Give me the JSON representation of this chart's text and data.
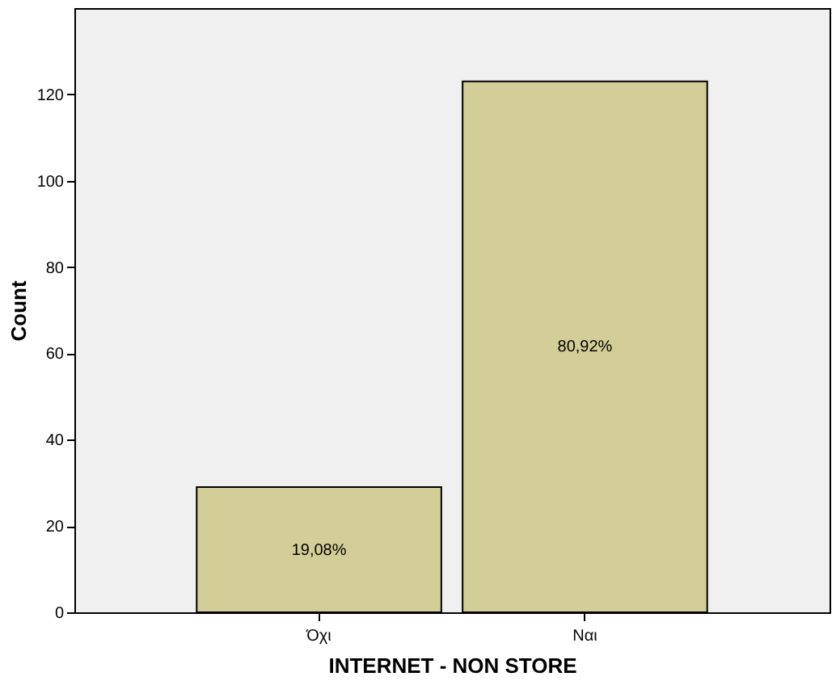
{
  "chart_data": {
    "type": "bar",
    "xlabel": "INTERNET - NON STORE",
    "ylabel": "Count",
    "categories": [
      "Όχι",
      "Ναι"
    ],
    "values": [
      29,
      123
    ],
    "annotations": [
      "19,08%",
      "80,92%"
    ],
    "color": "#d3ce97",
    "ylim": [
      0,
      140
    ],
    "yticks": [
      0,
      20,
      40,
      60,
      80,
      100,
      120
    ],
    "grid": false
  }
}
